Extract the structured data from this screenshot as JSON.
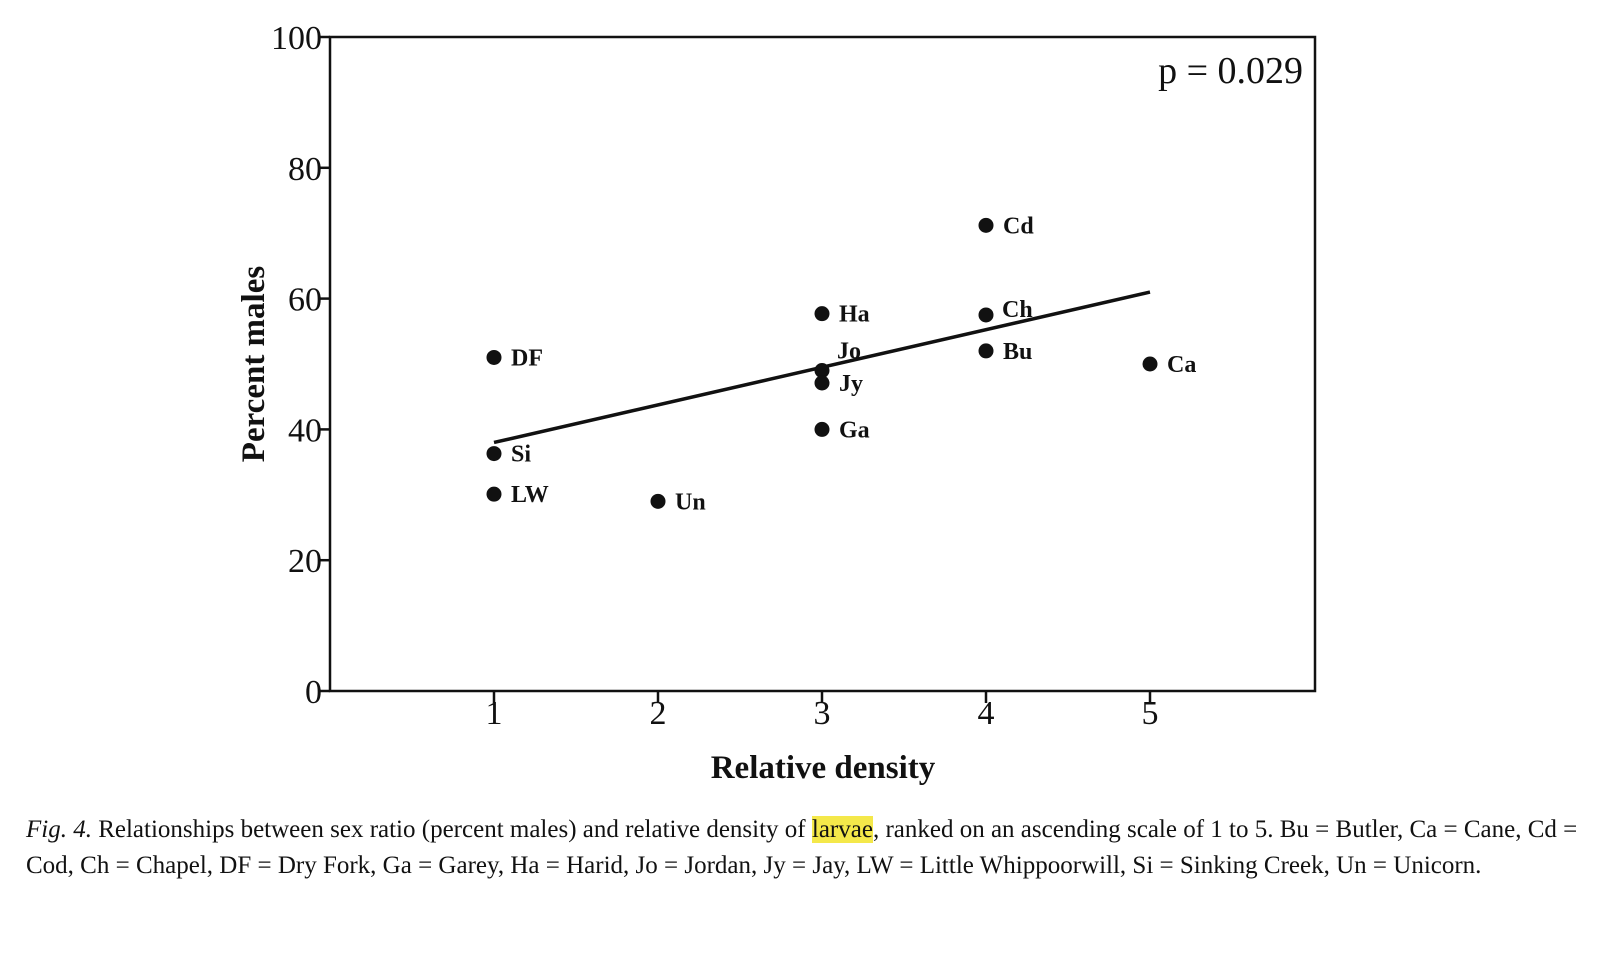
{
  "chart_data": {
    "type": "scatter",
    "title": "",
    "xlabel": "Relative density",
    "ylabel": "Percent males",
    "xlim": [
      0,
      6
    ],
    "ylim": [
      0,
      100
    ],
    "x_ticks": [
      1,
      2,
      3,
      4,
      5
    ],
    "y_ticks": [
      0,
      20,
      40,
      60,
      80,
      100
    ],
    "grid": false,
    "annotation": "p = 0.029",
    "points": [
      {
        "label": "DF",
        "x": 1,
        "y": 51
      },
      {
        "label": "Si",
        "x": 1,
        "y": 36.3
      },
      {
        "label": "LW",
        "x": 1,
        "y": 30.1
      },
      {
        "label": "Un",
        "x": 2,
        "y": 29
      },
      {
        "label": "Ha",
        "x": 3,
        "y": 57.7
      },
      {
        "label": "Jo",
        "x": 3,
        "y": 49
      },
      {
        "label": "Jy",
        "x": 3,
        "y": 47.1
      },
      {
        "label": "Ga",
        "x": 3,
        "y": 40
      },
      {
        "label": "Cd",
        "x": 4,
        "y": 71.2
      },
      {
        "label": "Ch",
        "x": 4,
        "y": 57.5
      },
      {
        "label": "Bu",
        "x": 4,
        "y": 52
      },
      {
        "label": "Ca",
        "x": 5,
        "y": 50
      }
    ],
    "regression_line": {
      "x": [
        1,
        5
      ],
      "y": [
        38,
        61
      ]
    }
  },
  "caption": {
    "fig_label": "Fig. 4.",
    "text_before": " Relationships between sex ratio (percent males) and relative density of ",
    "highlight": "larvae",
    "text_after": ", ranked on an ascending scale of 1 to 5. Bu = Butler, Ca = Cane, Cd = Cod, Ch = Chapel, DF = Dry Fork, Ga = Garey, Ha = Harid, Jo = Jordan, Jy = Jay, LW = Little Whippoorwill, Si = Sinking Creek, Un = Unicorn."
  },
  "colors": {
    "ink": "#111111",
    "highlight": "#f4e84a"
  }
}
